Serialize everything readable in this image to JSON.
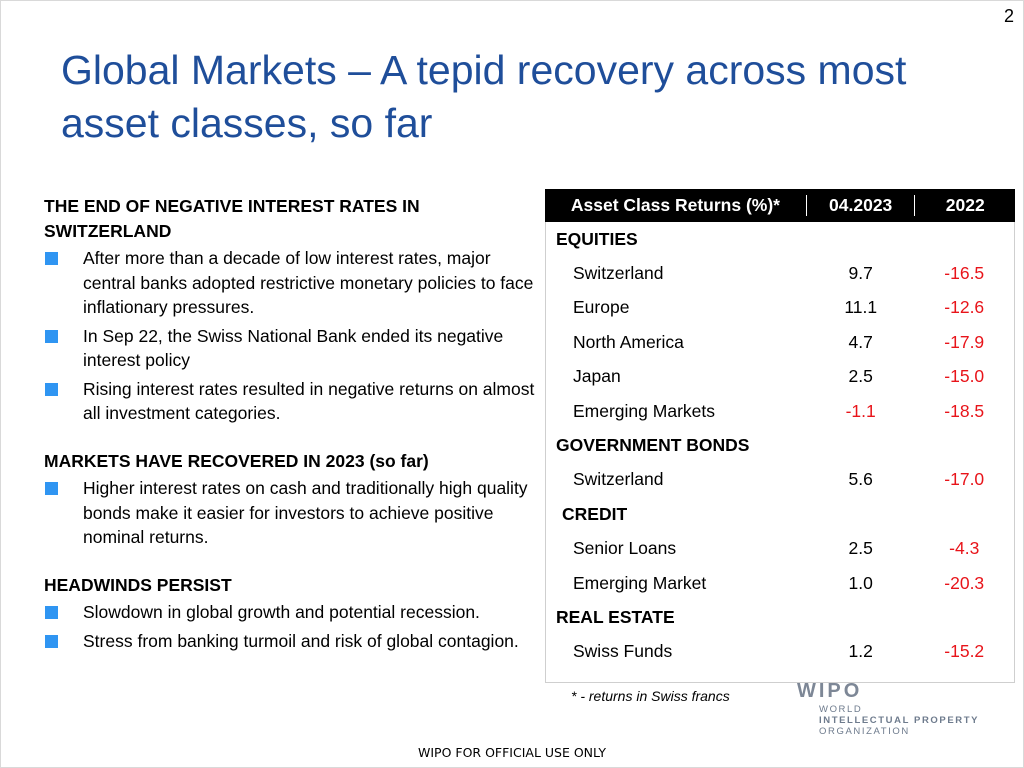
{
  "page_number": "2",
  "title": "Global Markets – A tepid recovery across most asset classes, so far",
  "sections": [
    {
      "heading": "THE END OF NEGATIVE INTEREST RATES IN SWITZERLAND",
      "bullets": [
        "After more than a decade of low interest rates, major central banks adopted restrictive monetary policies to face inflationary pressures.",
        "In Sep 22, the Swiss National Bank ended its negative interest policy",
        "Rising interest rates resulted in negative returns on almost all investment categories."
      ]
    },
    {
      "heading": "MARKETS HAVE RECOVERED IN 2023 (so far)",
      "bullets": [
        "Higher interest rates on cash and traditionally high quality bonds make it easier for investors to achieve positive nominal returns."
      ]
    },
    {
      "heading": "HEADWINDS PERSIST",
      "bullets": [
        "Slowdown in global growth and potential recession.",
        "Stress from banking turmoil and risk of global contagion."
      ]
    }
  ],
  "table": {
    "headers": [
      "Asset Class Returns (%)*",
      "04.2023",
      "2022"
    ],
    "rows": [
      {
        "label": "EQUITIES",
        "type": "category",
        "v2023": "",
        "v2022": ""
      },
      {
        "label": "Switzerland",
        "type": "item",
        "v2023": "9.7",
        "v2022": "-16.5"
      },
      {
        "label": "Europe",
        "type": "item",
        "v2023": "11.1",
        "v2022": "-12.6"
      },
      {
        "label": "North America",
        "type": "item",
        "v2023": "4.7",
        "v2022": "-17.9"
      },
      {
        "label": "Japan",
        "type": "item",
        "v2023": "2.5",
        "v2022": "-15.0"
      },
      {
        "label": "Emerging Markets",
        "type": "item",
        "v2023": "-1.1",
        "v2022": "-18.5"
      },
      {
        "label": "GOVERNMENT BONDS",
        "type": "category",
        "v2023": "",
        "v2022": ""
      },
      {
        "label": "Switzerland",
        "type": "item",
        "v2023": "5.6",
        "v2022": "-17.0"
      },
      {
        "label": "CREDIT",
        "type": "category",
        "v2023": "",
        "v2022": ""
      },
      {
        "label": "Senior Loans",
        "type": "item",
        "v2023": "2.5",
        "v2022": "-4.3"
      },
      {
        "label": "Emerging Market",
        "type": "item",
        "v2023": "1.0",
        "v2022": "-20.3"
      },
      {
        "label": "REAL ESTATE",
        "type": "category",
        "v2023": "",
        "v2022": ""
      },
      {
        "label": "Swiss Funds",
        "type": "item",
        "v2023": "1.2",
        "v2022": "-15.2"
      }
    ],
    "negative_color": "#e8141a"
  },
  "footnote": "* - returns in Swiss francs",
  "logo": {
    "name": "WIPO",
    "lines": [
      "WORLD",
      "INTELLECTUAL PROPERTY",
      "ORGANIZATION"
    ]
  },
  "footer": "WIPO FOR OFFICIAL USE ONLY",
  "colors": {
    "title": "#1f4e9a",
    "bullet": "#2f95f2",
    "table_header_bg": "#000000"
  }
}
